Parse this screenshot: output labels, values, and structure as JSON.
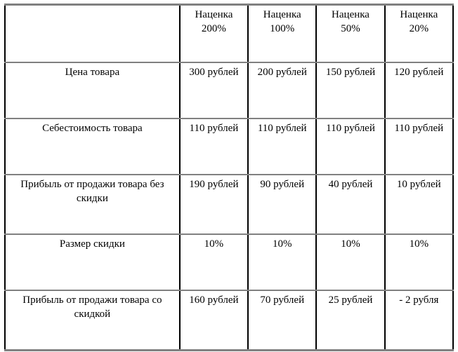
{
  "table": {
    "corner": "",
    "headers": [
      {
        "title": "Наценка",
        "value": "200%"
      },
      {
        "title": "Наценка",
        "value": "100%"
      },
      {
        "title": "Наценка",
        "value": "50%"
      },
      {
        "title": "Наценка",
        "value": "20%"
      }
    ],
    "rows": [
      {
        "label": "Цена товара",
        "values": [
          "300 рублей",
          "200 рублей",
          "150 рублей",
          "120 рублей"
        ]
      },
      {
        "label": "Себестоимость товара",
        "values": [
          "110 рублей",
          "110 рублей",
          "110 рублей",
          "110 рублей"
        ]
      },
      {
        "label": "Прибыль от продажи товара без скидки",
        "values": [
          "190 рублей",
          "90 рублей",
          "40 рублей",
          "10 рублей"
        ]
      },
      {
        "label": "Размер скидки",
        "values": [
          "10%",
          "10%",
          "10%",
          "10%"
        ]
      },
      {
        "label": "Прибыль от продажи товара со скидкой",
        "values": [
          "160 рублей",
          "70 рублей",
          "25 рублей",
          "- 2 рубля"
        ]
      }
    ],
    "colors": {
      "horizontal_border": "#808080",
      "vertical_border": "#000000",
      "text": "#000000",
      "background": "#ffffff"
    }
  }
}
